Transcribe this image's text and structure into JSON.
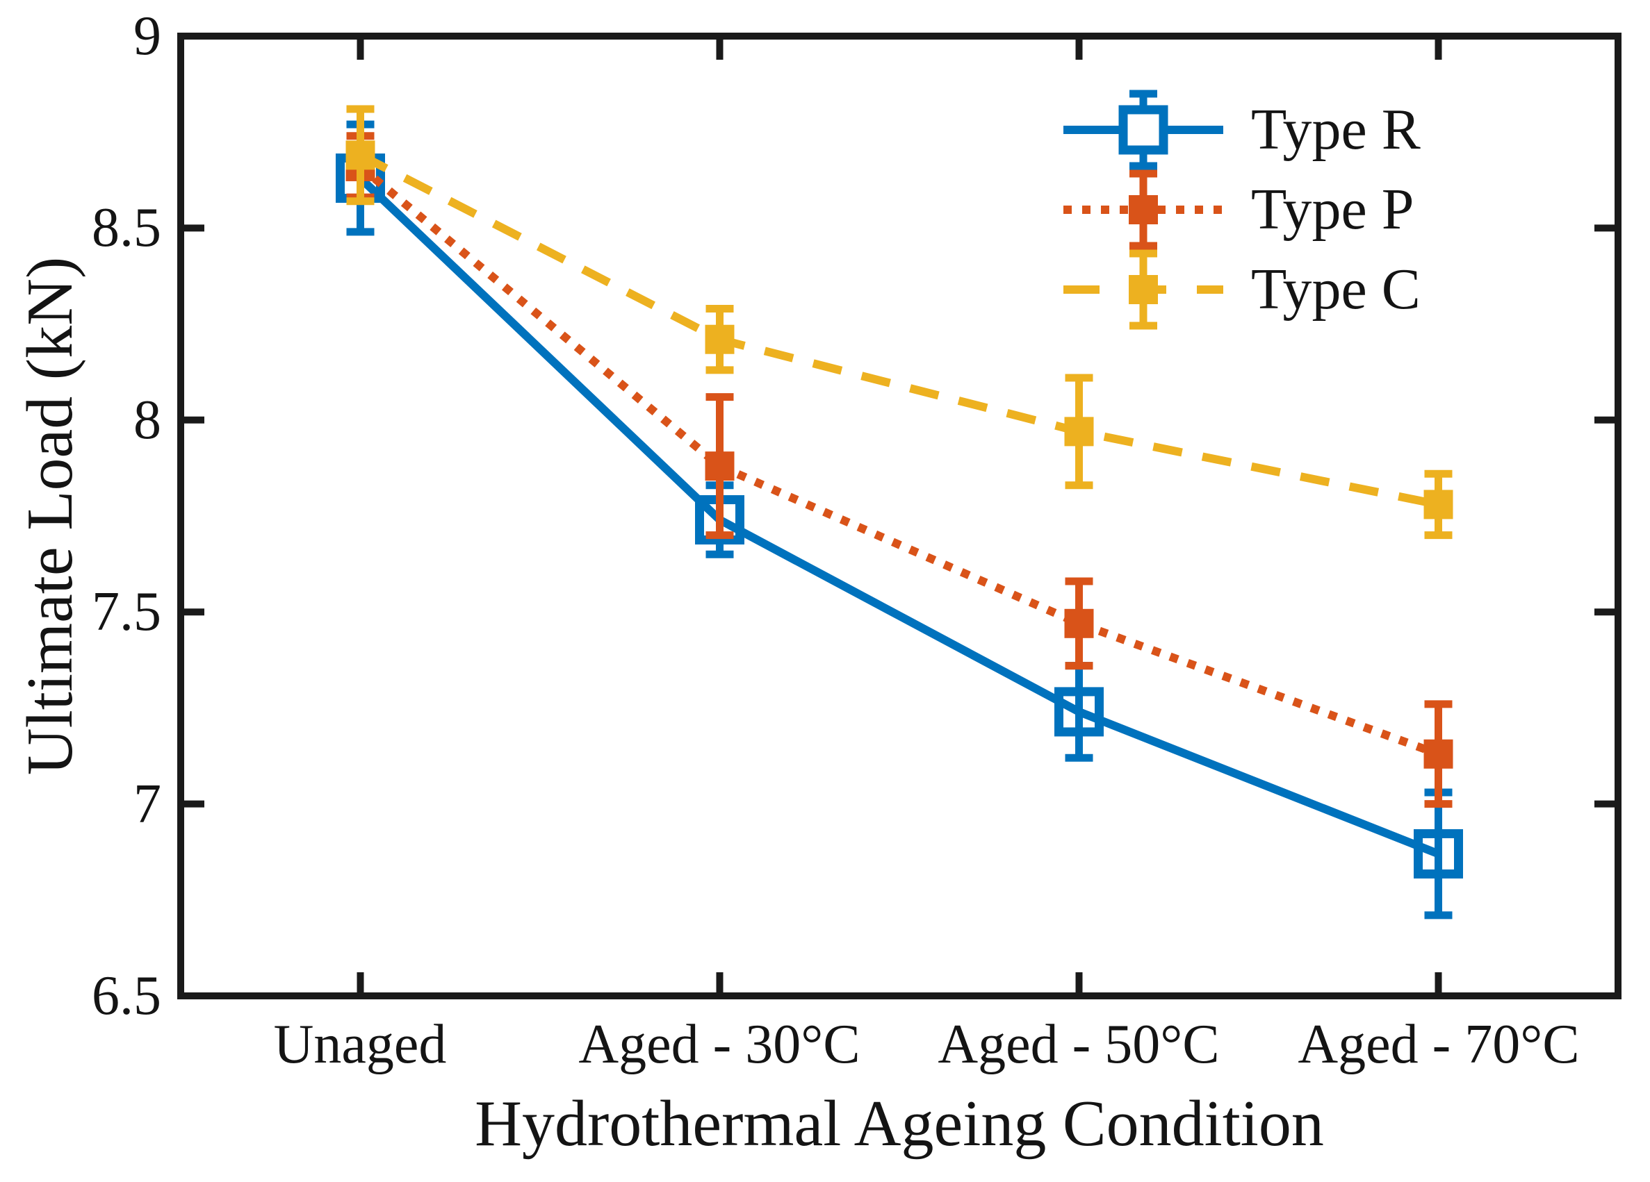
{
  "chart_data": {
    "type": "line",
    "title": "",
    "xlabel": "Hydrothermal Ageing Condition",
    "ylabel": "Ultimate Load (kN)",
    "categories": [
      "Unaged",
      "Aged - 30°C",
      "Aged - 50°C",
      "Aged - 70°C"
    ],
    "ylim": [
      6.5,
      9
    ],
    "yticks": [
      9,
      8.5,
      8,
      7.5,
      7,
      6.5
    ],
    "ytick_labels": [
      "9",
      "8.5",
      "8",
      "7.5",
      "7",
      "6.5"
    ],
    "grid": false,
    "legend_position": "top-right",
    "legend_frame": false,
    "axis_color": "#1a1a1a",
    "text_color": "#141414",
    "background_color": "#ffffff",
    "series": [
      {
        "name": "Type R",
        "values": [
          8.63,
          7.74,
          7.24,
          6.87
        ],
        "errors": [
          0.14,
          0.09,
          0.12,
          0.16
        ],
        "color": "#0072BD",
        "line_style": "solid",
        "marker": "open-square"
      },
      {
        "name": "Type P",
        "values": [
          8.66,
          7.88,
          7.47,
          7.13
        ],
        "errors": [
          0.08,
          0.18,
          0.11,
          0.13
        ],
        "color": "#D95319",
        "line_style": "dotted",
        "marker": "filled-square"
      },
      {
        "name": "Type C",
        "values": [
          8.69,
          8.21,
          7.97,
          7.78
        ],
        "errors": [
          0.12,
          0.08,
          0.14,
          0.08
        ],
        "color": "#EDB120",
        "line_style": "dashed",
        "marker": "filled-square"
      }
    ]
  }
}
